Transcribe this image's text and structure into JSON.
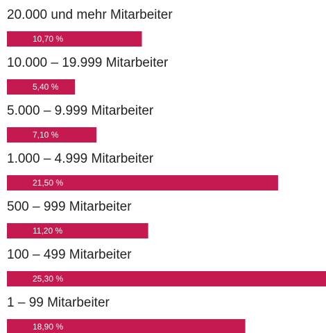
{
  "chart_data": {
    "type": "bar",
    "orientation": "horizontal",
    "categories": [
      "20.000 und mehr Mitarbeiter",
      "10.000 – 19.999 Mitarbeiter",
      "5.000 – 9.999 Mitarbeiter",
      "1.000 – 4.999 Mitarbeiter",
      "500 – 999 Mitarbeiter",
      "100 – 499 Mitarbeiter",
      "1 – 99 Mitarbeiter"
    ],
    "values": [
      10.7,
      5.4,
      7.1,
      21.5,
      11.2,
      25.3,
      18.9
    ],
    "value_labels": [
      "10,70 %",
      "5,40 %",
      "7,10 %",
      "21,50 %",
      "11,20 %",
      "25,30 %",
      "18,90 %"
    ],
    "color": "#c41a4f",
    "xlim": [
      0,
      25.3
    ]
  }
}
